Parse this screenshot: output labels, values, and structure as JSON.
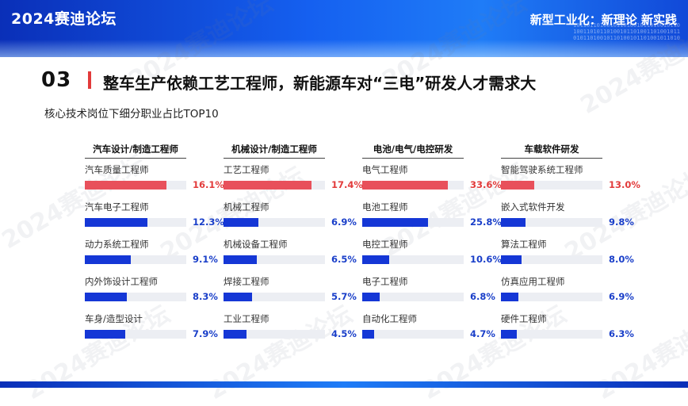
{
  "header": {
    "brand": "2024赛迪论坛",
    "tagline": "新型工业化：新理论 新实践",
    "binary_lines": [
      "10110110100101101001011010010110",
      "10011010110100101101001101001011",
      "01011010010110100101101001011010"
    ]
  },
  "section": {
    "number": "03",
    "title": "整车生产依赖工艺工程师，新能源车对“三电”研发人才需求大"
  },
  "subtitle": "核心技术岗位下细分职业占比TOP10",
  "watermark": "2024赛迪论坛",
  "colors": {
    "highlight": "#e8505b",
    "bar": "#1537d6",
    "highlight_text": "#e23b3b",
    "bar_text": "#1a3fc9",
    "track": "#eceef3"
  },
  "chart_data": {
    "type": "bar",
    "unit": "%",
    "groups": [
      {
        "name": "汽车设计/制造工程师",
        "max": 20,
        "items": [
          {
            "label": "汽车质量工程师",
            "value": 16.1,
            "display": "16.1%",
            "highlight": true
          },
          {
            "label": "汽车电子工程师",
            "value": 12.3,
            "display": "12.3%"
          },
          {
            "label": "动力系统工程师",
            "value": 9.1,
            "display": "9.1%"
          },
          {
            "label": "内外饰设计工程师",
            "value": 8.3,
            "display": "8.3%"
          },
          {
            "label": "车身/造型设计",
            "value": 7.9,
            "display": "7.9%"
          }
        ]
      },
      {
        "name": "机械设计/制造工程师",
        "max": 20,
        "items": [
          {
            "label": "工艺工程师",
            "value": 17.4,
            "display": "17.4%",
            "highlight": true
          },
          {
            "label": "机械工程师",
            "value": 6.9,
            "display": "6.9%"
          },
          {
            "label": "机械设备工程师",
            "value": 6.5,
            "display": "6.5%"
          },
          {
            "label": "焊接工程师",
            "value": 5.7,
            "display": "5.7%"
          },
          {
            "label": "工业工程师",
            "value": 4.5,
            "display": "4.5%"
          }
        ]
      },
      {
        "name": "电池/电气/电控研发",
        "max": 40,
        "items": [
          {
            "label": "电气工程师",
            "value": 33.6,
            "display": "33.6%",
            "highlight": true
          },
          {
            "label": "电池工程师",
            "value": 25.8,
            "display": "25.8%"
          },
          {
            "label": "电控工程师",
            "value": 10.6,
            "display": "10.6%"
          },
          {
            "label": "电子工程师",
            "value": 6.8,
            "display": "6.8%"
          },
          {
            "label": "自动化工程师",
            "value": 4.7,
            "display": "4.7%"
          }
        ]
      },
      {
        "name": "车载软件研发",
        "max": 40,
        "items": [
          {
            "label": "智能驾驶系统工程师",
            "value": 13.0,
            "display": "13.0%",
            "highlight": true
          },
          {
            "label": "嵌入式软件开发",
            "value": 9.8,
            "display": "9.8%"
          },
          {
            "label": "算法工程师",
            "value": 8.0,
            "display": "8.0%"
          },
          {
            "label": "仿真应用工程师",
            "value": 6.9,
            "display": "6.9%"
          },
          {
            "label": "硬件工程师",
            "value": 6.3,
            "display": "6.3%"
          }
        ]
      }
    ]
  }
}
